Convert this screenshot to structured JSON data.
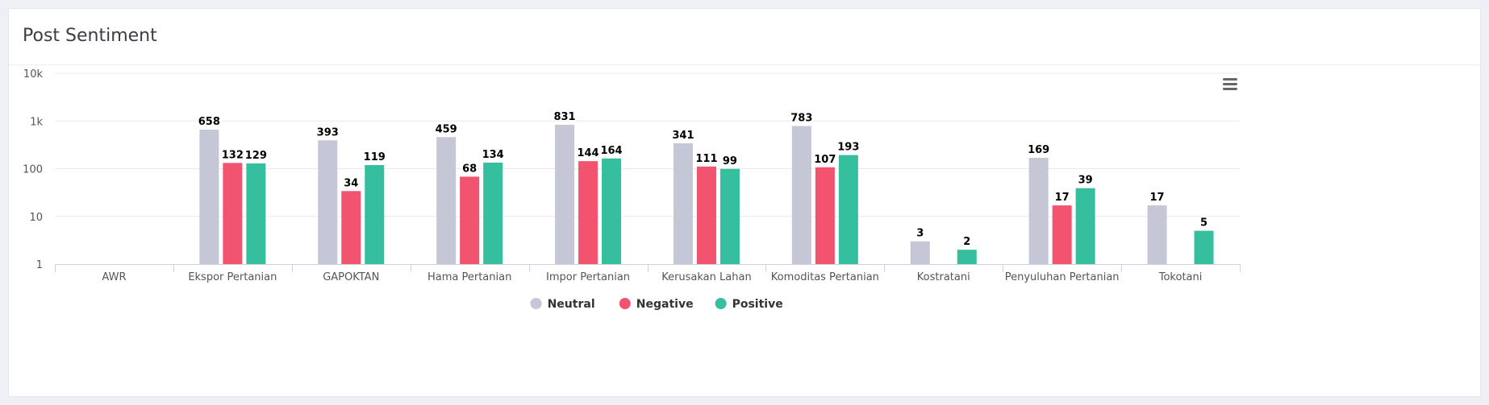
{
  "panel": {
    "title": "Post Sentiment",
    "menu_icon": "hamburger-menu-icon"
  },
  "colors": {
    "Neutral": "#c5c6d6",
    "Negative": "#f2536f",
    "Positive": "#35bf9f",
    "grid": "#e8e9ef",
    "axis": "#c9d4ea",
    "label": "#555555"
  },
  "chart_data": {
    "type": "bar",
    "title": "",
    "xlabel": "",
    "ylabel": "",
    "yscale": "log",
    "ylim": [
      1,
      10000
    ],
    "yticks": [
      "1",
      "10",
      "100",
      "1k",
      "10k"
    ],
    "grid": true,
    "legend_position": "bottom-center",
    "categories": [
      "AWR",
      "Ekspor Pertanian",
      "GAPOKTAN",
      "Hama Pertanian",
      "Impor Pertanian",
      "Kerusakan Lahan",
      "Komoditas Pertanian",
      "Kostratani",
      "Penyuluhan Pertanian",
      "Tokotani"
    ],
    "series": [
      {
        "name": "Neutral",
        "values": [
          null,
          658,
          393,
          459,
          831,
          341,
          783,
          3,
          169,
          17
        ]
      },
      {
        "name": "Negative",
        "values": [
          null,
          132,
          34,
          68,
          144,
          111,
          107,
          null,
          17,
          null
        ]
      },
      {
        "name": "Positive",
        "values": [
          null,
          129,
          119,
          134,
          164,
          99,
          193,
          2,
          39,
          5
        ]
      }
    ]
  }
}
